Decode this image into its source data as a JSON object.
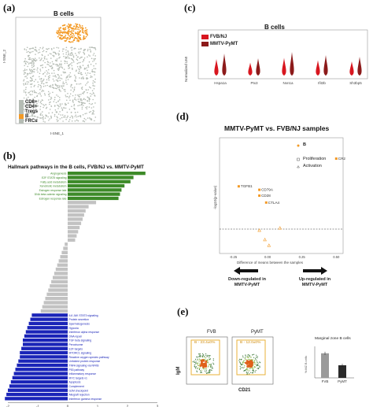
{
  "panel_a": {
    "label": "(a)",
    "title": "B cells",
    "xlabel": "t-SNE_1",
    "ylabel": "t-SNE_2",
    "legend": [
      "CD8+",
      "CD4+",
      "Tregs",
      "B",
      "FRCs"
    ],
    "colors": {
      "b": "#f39a26",
      "other": "#b5bcb4"
    }
  },
  "panel_b": {
    "label": "(b)",
    "title": "Hallmark pathways in the B cells, FVB/NJ vs. MMTV-PyMT",
    "colors": {
      "up": "#3d8a28",
      "grey": "#c2c2c2",
      "down": "#1a24b8"
    },
    "ticks": [
      "-2",
      "-1",
      "0",
      "1",
      "2",
      "3"
    ]
  },
  "panel_c": {
    "label": "(c)",
    "title": "B cells",
    "ylabel": "Normalized UMI",
    "legend": [
      "FVB/NJ",
      "MMTV-PyMT"
    ],
    "genes": [
      "Hspa1a",
      "Ptx3",
      "Nxn1a",
      "Ifit3b",
      "Sh3bp5"
    ],
    "colors": {
      "fvb": "#d8161f",
      "pymt": "#8c1a1a"
    }
  },
  "panel_d": {
    "label": "(d)",
    "title": "MMTV-PyMT vs. FVB/NJ samples",
    "ylabel": "-log10(p-value)",
    "xlabel": "Difference of means between the samples",
    "legend_b": "B",
    "legend_prolif": "Proliferation",
    "legend_act": "Activation",
    "xticks": [
      "-0.25",
      "0.00",
      "0.25",
      "0.50"
    ],
    "gene_labels": [
      "CR2",
      "TGFB1",
      "CD79A",
      "CD28",
      "CTLA4"
    ],
    "arrow_left": "Down-regulated in MMTV-PyMT",
    "arrow_right": "Up-regulated in MMTV-PyMT",
    "color": "#f39a26"
  },
  "panel_e": {
    "label": "(e)",
    "fvb_label": "FVB",
    "pymt_label": "PyMT",
    "fvb_gate": "B - 23.4±0%",
    "pymt_gate": "B - 12.0±0%",
    "xlabel": "CD21",
    "ylabel": "IgM",
    "bar_title": "Marginal zone B cells",
    "bar_ylabel": "% MZ B cells",
    "gate_color": "#e8b23a"
  },
  "chart_data": [
    {
      "type": "bar",
      "orientation": "horizontal",
      "title": "Hallmark pathways in the B cells, FVB/NJ vs. MMTV-PyMT",
      "xlim": [
        -2,
        3
      ],
      "categories": [
        "Angiogenesis",
        "E2F STAT5 signaling",
        "Fatty acid metabolism",
        "Xenobiotic metabolism",
        "Estrogen response late",
        "DNA beta catenin signaling",
        "Estrogen response late",
        "",
        "",
        "",
        "",
        "",
        "",
        "",
        "",
        "",
        "",
        "",
        "",
        "",
        "",
        "",
        "",
        "",
        "",
        "",
        "",
        "",
        "",
        "",
        "",
        "",
        "",
        "",
        "IL6 JAK STAT3 signaling",
        "Protein secretion",
        "Spermatogenesis",
        "Hypoxia",
        "Interferon alpha response",
        "DNA repair",
        "TGF beta signaling",
        "Peroxisome",
        "E2F targets",
        "MTORC1 signaling",
        "Reactive oxygen species pathway",
        "Unfolded protein response",
        "TNFA signaling via NFKB",
        "P53 pathway",
        "Inflammatory response",
        "MYC targets v1",
        "Apoptosis",
        "Complement",
        "G2M checkpoint",
        "Allograft rejection",
        "Interferon gamma response"
      ],
      "values": [
        2.6,
        2.2,
        2.1,
        1.9,
        1.8,
        1.75,
        1.7,
        0.95,
        0.7,
        0.6,
        0.55,
        0.5,
        0.45,
        0.4,
        0.35,
        0.3,
        0.25,
        -0.1,
        -0.15,
        -0.2,
        -0.25,
        -0.3,
        -0.35,
        -0.4,
        -0.45,
        -0.5,
        -0.55,
        -0.6,
        -0.65,
        -0.7,
        -0.75,
        -0.8,
        -0.85,
        -0.9,
        -1.2,
        -1.25,
        -1.3,
        -1.35,
        -1.4,
        -1.45,
        -1.5,
        -1.5,
        -1.55,
        -1.6,
        -1.6,
        -1.65,
        -1.7,
        -1.75,
        -1.8,
        -1.85,
        -1.9,
        -1.95,
        -2.0,
        -2.05,
        -2.1
      ]
    },
    {
      "type": "scatter",
      "title": "MMTV-PyMT vs. FVB/NJ samples",
      "xlabel": "Difference of means between the samples",
      "xlim": [
        -0.35,
        0.55
      ],
      "ylim": [
        0,
        1
      ],
      "points": [
        {
          "label": "CR2",
          "x": 0.5,
          "y": 0.82,
          "marker": "square"
        },
        {
          "label": "TGFB1",
          "x": -0.21,
          "y": 0.58,
          "marker": "square"
        },
        {
          "label": "CD79A",
          "x": -0.06,
          "y": 0.55,
          "marker": "square"
        },
        {
          "label": "CD28",
          "x": -0.06,
          "y": 0.5,
          "marker": "square"
        },
        {
          "label": "CTLA4",
          "x": -0.01,
          "y": 0.44,
          "marker": "square"
        },
        {
          "label": "",
          "x": -0.06,
          "y": 0.2,
          "marker": "triangle"
        },
        {
          "label": "",
          "x": 0.09,
          "y": 0.22,
          "marker": "triangle"
        },
        {
          "label": "",
          "x": -0.02,
          "y": 0.12,
          "marker": "triangle"
        },
        {
          "label": "",
          "x": 0.01,
          "y": 0.07,
          "marker": "triangle"
        }
      ]
    },
    {
      "type": "bar",
      "title": "Marginal zone B cells",
      "categories": [
        "FVB",
        "PyMT"
      ],
      "values": [
        23.4,
        12.0
      ]
    }
  ]
}
